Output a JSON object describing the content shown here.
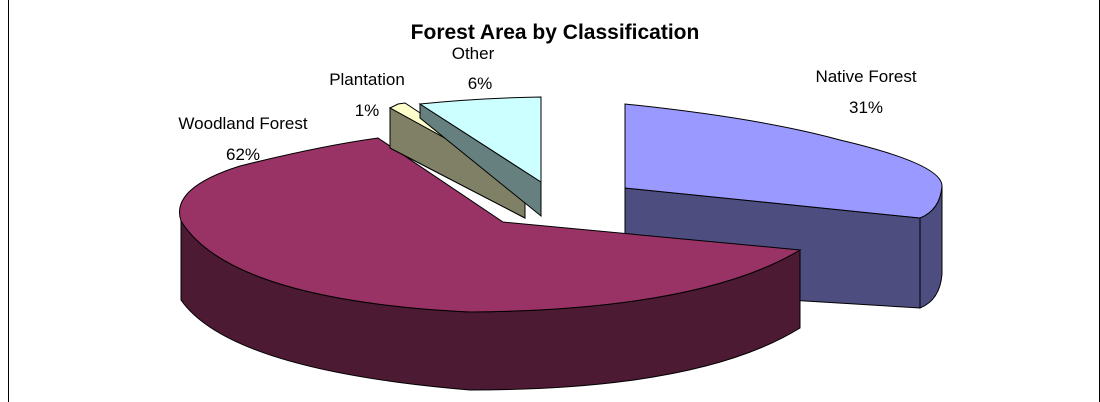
{
  "chart_data": {
    "type": "pie",
    "title": "Forest Area by Classification",
    "three_d": true,
    "slices": [
      {
        "name": "Native Forest",
        "value": 31,
        "value_label": "31%",
        "top_color": "#9999ff",
        "side_color": "#4d4d80",
        "exploded": true
      },
      {
        "name": "Woodland Forest",
        "value": 62,
        "value_label": "62%",
        "top_color": "#993366",
        "side_color": "#4d1a33",
        "exploded": false
      },
      {
        "name": "Plantation",
        "value": 1,
        "value_label": "1%",
        "top_color": "#ffffcc",
        "side_color": "#808066",
        "exploded": true
      },
      {
        "name": "Other",
        "value": 6,
        "value_label": "6%",
        "top_color": "#ccffff",
        "side_color": "#668080",
        "exploded": true
      }
    ]
  }
}
